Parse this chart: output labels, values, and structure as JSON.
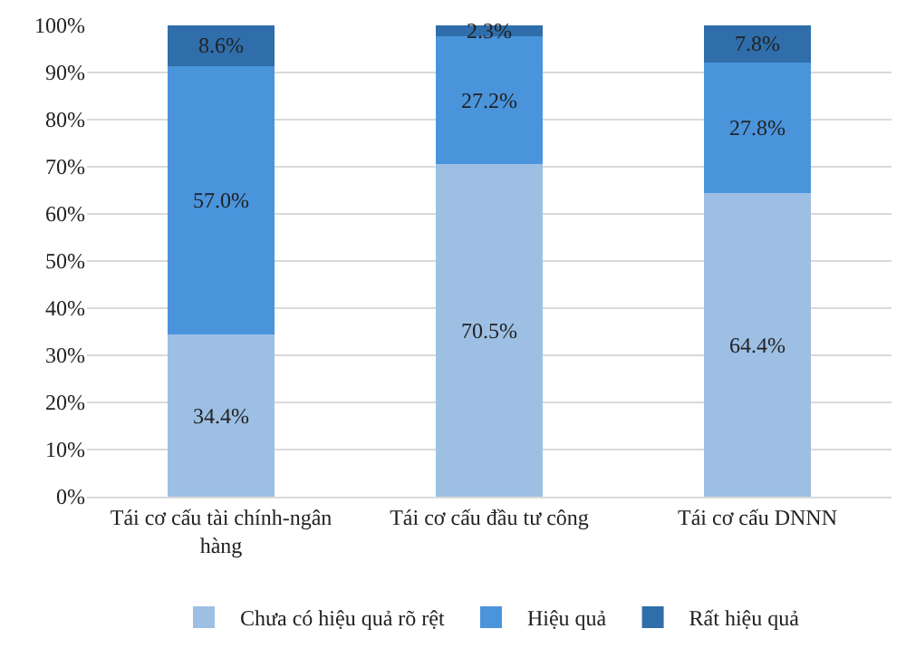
{
  "chart_data": {
    "type": "bar",
    "stacked": true,
    "categories": [
      "Tái cơ cấu tài chính-ngân hàng",
      "Tái cơ cấu đầu tư công",
      "Tái cơ cấu DNNN"
    ],
    "series": [
      {
        "name": "Chưa có hiệu quả rõ rệt",
        "color": "#9dbfe4",
        "values": [
          34.4,
          70.5,
          64.4
        ],
        "value_labels": [
          "34.4%",
          "70.5%",
          "64.4%"
        ]
      },
      {
        "name": "Hiệu quả",
        "color": "#4a94dc",
        "values": [
          57.0,
          27.2,
          27.8
        ],
        "value_labels": [
          "57.0%",
          "27.2%",
          "27.8%"
        ]
      },
      {
        "name": "Rất hiệu quả",
        "color": "#2f6eaa",
        "values": [
          8.6,
          2.3,
          7.8
        ],
        "value_labels": [
          "8.6%",
          "2.3%",
          "7.8%"
        ]
      }
    ],
    "ylim": [
      0,
      100
    ],
    "yticks": [
      {
        "value": 0,
        "label": "0%"
      },
      {
        "value": 10,
        "label": "10%"
      },
      {
        "value": 20,
        "label": "20%"
      },
      {
        "value": 30,
        "label": "30%"
      },
      {
        "value": 40,
        "label": "40%"
      },
      {
        "value": 50,
        "label": "50%"
      },
      {
        "value": 60,
        "label": "60%"
      },
      {
        "value": 70,
        "label": "70%"
      },
      {
        "value": 80,
        "label": "80%"
      },
      {
        "value": 90,
        "label": "90%"
      },
      {
        "value": 100,
        "label": "100%"
      }
    ],
    "grid": "y",
    "legend": "bottom"
  }
}
